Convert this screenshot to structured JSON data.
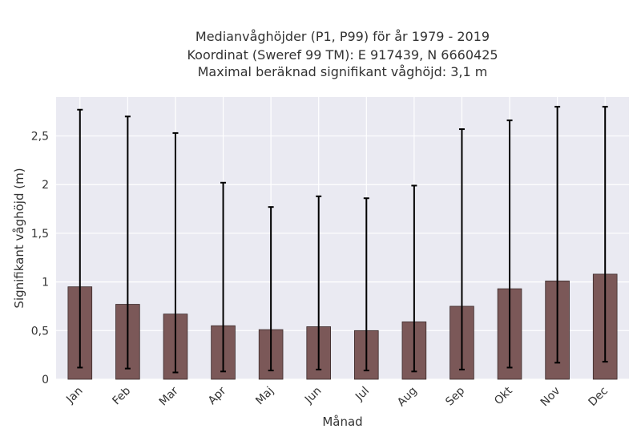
{
  "chart_data": {
    "type": "bar",
    "title_lines": [
      "Medianvåghöjder (P1, P99) för år 1979 - 2019",
      "Koordinat (Sweref 99 TM): E 917439, N 6660425",
      "Maximal beräknad signifikant våghöjd: 3,1 m"
    ],
    "xlabel": "Månad",
    "ylabel": "Signifikant våghöjd (m)",
    "categories": [
      "Jan",
      "Feb",
      "Mar",
      "Apr",
      "Maj",
      "Jun",
      "Jul",
      "Aug",
      "Sep",
      "Okt",
      "Nov",
      "Dec"
    ],
    "values": [
      0.95,
      0.77,
      0.67,
      0.55,
      0.51,
      0.54,
      0.5,
      0.59,
      0.75,
      0.93,
      1.01,
      1.08
    ],
    "p1": [
      0.12,
      0.11,
      0.07,
      0.08,
      0.09,
      0.1,
      0.09,
      0.08,
      0.1,
      0.12,
      0.17,
      0.18
    ],
    "p99": [
      2.77,
      2.7,
      2.53,
      2.02,
      1.77,
      1.88,
      1.86,
      1.99,
      2.57,
      2.66,
      2.8,
      2.8
    ],
    "ylim": [
      0,
      2.9
    ],
    "yticks": [
      0,
      0.5,
      1,
      1.5,
      2,
      2.5
    ],
    "ytick_labels": [
      "0",
      "0,5",
      "1",
      "1,5",
      "2",
      "2,5"
    ],
    "grid": true,
    "colors": {
      "bar": "#7b5858",
      "bar_edge": "#3a2a2a",
      "error": "#000000",
      "plot_bg": "#eaeaf2",
      "grid": "#ffffff"
    }
  }
}
